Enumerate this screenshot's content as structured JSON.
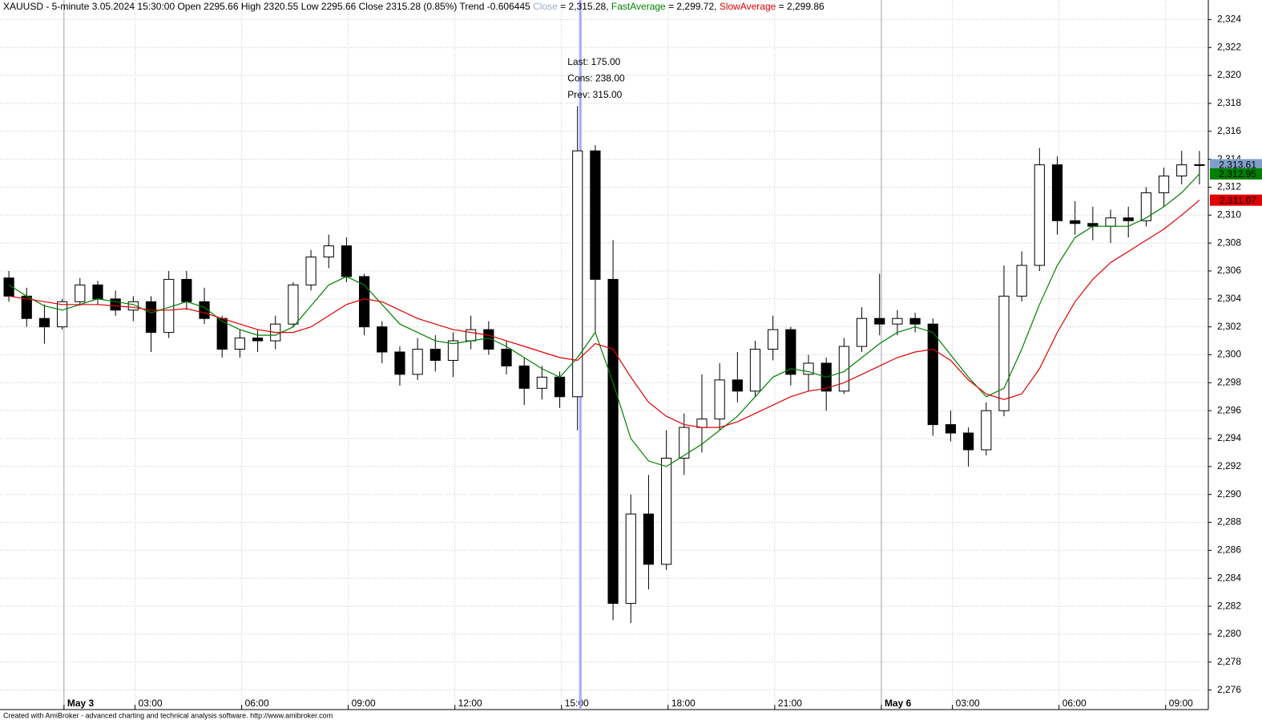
{
  "chart_data": {
    "type": "candlestick",
    "title": "XAUUSD - 5-minute 3.05.2024 15:30:00 Open 2295.66 High 2320.55 Low 2295.66 Close 2315.28 (0.85%) Trend -0.606445",
    "close_name": "Close",
    "close_color": "#9aaccc",
    "close_readout": "= 2,315.28,",
    "footer": "Created with AmiBroker - advanced charting and technical analysis software. http://www.amibroker.com",
    "xlim": [
      0,
      34
    ],
    "xticks": [
      {
        "value": 1.8,
        "label": "May 3",
        "day": true
      },
      {
        "value": 3.8,
        "label": "03:00"
      },
      {
        "value": 6.8,
        "label": "06:00"
      },
      {
        "value": 9.8,
        "label": "09:00"
      },
      {
        "value": 12.8,
        "label": "12:00"
      },
      {
        "value": 15.8,
        "label": "15:00"
      },
      {
        "value": 18.8,
        "label": "18:00"
      },
      {
        "value": 21.8,
        "label": "21:00"
      },
      {
        "value": 24.8,
        "label": "May 6",
        "day": true
      },
      {
        "value": 26.8,
        "label": "03:00"
      },
      {
        "value": 29.8,
        "label": "06:00"
      },
      {
        "value": 32.8,
        "label": "09:00"
      }
    ],
    "ylim": [
      2274.6,
      2325.4
    ],
    "yticks": [
      {
        "value": 2276,
        "label": "2,276"
      },
      {
        "value": 2278,
        "label": "2,278"
      },
      {
        "value": 2280,
        "label": "2,280"
      },
      {
        "value": 2282,
        "label": "2,282"
      },
      {
        "value": 2284,
        "label": "2,284"
      },
      {
        "value": 2286,
        "label": "2,286"
      },
      {
        "value": 2288,
        "label": "2,288"
      },
      {
        "value": 2290,
        "label": "2,290"
      },
      {
        "value": 2292,
        "label": "2,292"
      },
      {
        "value": 2294,
        "label": "2,294"
      },
      {
        "value": 2296,
        "label": "2,296"
      },
      {
        "value": 2298,
        "label": "2,298"
      },
      {
        "value": 2300,
        "label": "2,300"
      },
      {
        "value": 2302,
        "label": "2,302"
      },
      {
        "value": 2304,
        "label": "2,304"
      },
      {
        "value": 2306,
        "label": "2,306"
      },
      {
        "value": 2308,
        "label": "2,308"
      },
      {
        "value": 2310,
        "label": "2,310"
      },
      {
        "value": 2312,
        "label": "2,312"
      },
      {
        "value": 2314,
        "label": "2,314"
      },
      {
        "value": 2316,
        "label": "2,316"
      },
      {
        "value": 2318,
        "label": "2,318"
      },
      {
        "value": 2320,
        "label": "2,320"
      },
      {
        "value": 2322,
        "label": "2,322"
      },
      {
        "value": 2324,
        "label": "2,324"
      }
    ],
    "grid": true,
    "cursor_x": 16.33,
    "cursor_color": "#a8a8ff",
    "annotation_color": "#2a9a2a",
    "annotations": [
      "Last: 175.00",
      "Cons: 238.00",
      "Prev: 315.00"
    ],
    "x": [
      0.25,
      0.75,
      1.25,
      1.75,
      2.25,
      2.75,
      3.25,
      3.75,
      4.25,
      4.75,
      5.25,
      5.75,
      6.25,
      6.75,
      7.25,
      7.75,
      8.25,
      8.75,
      9.25,
      9.75,
      10.25,
      10.75,
      11.25,
      11.75,
      12.25,
      12.75,
      13.25,
      13.75,
      14.25,
      14.75,
      15.25,
      15.75,
      16.25,
      16.75,
      17.25,
      17.75,
      18.25,
      18.75,
      19.25,
      19.75,
      20.25,
      20.75,
      21.25,
      21.75,
      22.25,
      22.75,
      23.25,
      23.75,
      24.25,
      24.75,
      25.25,
      25.75,
      26.25,
      26.75,
      27.25,
      27.75,
      28.25,
      28.75,
      29.25,
      29.75,
      30.25,
      30.75,
      31.25,
      31.75,
      32.25,
      32.75,
      33.25,
      33.75
    ],
    "candles": [
      [
        2305.5,
        2306,
        2303.8,
        2304.2
      ],
      [
        2304.2,
        2304.8,
        2302,
        2302.6
      ],
      [
        2302.6,
        2303.6,
        2300.8,
        2302
      ],
      [
        2302,
        2304,
        2301.8,
        2303.8
      ],
      [
        2303.8,
        2305.5,
        2303.5,
        2305
      ],
      [
        2305,
        2305.3,
        2303.6,
        2304
      ],
      [
        2304,
        2304.6,
        2302.8,
        2303.2
      ],
      [
        2303.2,
        2304.2,
        2302.4,
        2303.8
      ],
      [
        2303.8,
        2304.2,
        2300.2,
        2301.6
      ],
      [
        2301.6,
        2306,
        2301.2,
        2305.4
      ],
      [
        2305.4,
        2306,
        2303.2,
        2303.8
      ],
      [
        2303.8,
        2304.8,
        2302.2,
        2302.6
      ],
      [
        2302.6,
        2302.8,
        2299.8,
        2300.4
      ],
      [
        2300.4,
        2301.8,
        2299.8,
        2301.2
      ],
      [
        2301.2,
        2301.8,
        2300.2,
        2301
      ],
      [
        2301,
        2302.8,
        2300.4,
        2302.2
      ],
      [
        2302.2,
        2305.2,
        2302,
        2305
      ],
      [
        2305,
        2307.5,
        2304.6,
        2307
      ],
      [
        2307,
        2308.6,
        2306.2,
        2307.8
      ],
      [
        2307.8,
        2308.4,
        2305.2,
        2305.6
      ],
      [
        2305.6,
        2305.8,
        2301.4,
        2302
      ],
      [
        2302,
        2302.4,
        2299.4,
        2300.2
      ],
      [
        2300.2,
        2300.6,
        2297.8,
        2298.6
      ],
      [
        2298.6,
        2301.2,
        2298.2,
        2300.4
      ],
      [
        2300.4,
        2301.4,
        2298.8,
        2299.6
      ],
      [
        2299.6,
        2301.6,
        2298.4,
        2301
      ],
      [
        2301,
        2302.8,
        2300.4,
        2301.8
      ],
      [
        2301.8,
        2302.4,
        2300,
        2300.4
      ],
      [
        2300.4,
        2301,
        2298.6,
        2299.2
      ],
      [
        2299.2,
        2299.8,
        2296.4,
        2297.6
      ],
      [
        2297.6,
        2299.2,
        2296.8,
        2298.4
      ],
      [
        2298.4,
        2298.8,
        2296.2,
        2297
      ],
      [
        2297,
        2317.8,
        2294.6,
        2314.6
      ],
      [
        2314.6,
        2315,
        2301.6,
        2305.4
      ],
      [
        2305.4,
        2308.2,
        2281,
        2282.2
      ],
      [
        2282.2,
        2290,
        2280.8,
        2288.6
      ],
      [
        2288.6,
        2291.4,
        2283.2,
        2285
      ],
      [
        2285,
        2294.6,
        2284.6,
        2292.6
      ],
      [
        2292.6,
        2295.8,
        2291.4,
        2294.8
      ],
      [
        2294.8,
        2298.6,
        2293,
        2295.4
      ],
      [
        2295.4,
        2299.4,
        2294.6,
        2298.2
      ],
      [
        2298.2,
        2300.2,
        2296.6,
        2297.4
      ],
      [
        2297.4,
        2301,
        2297,
        2300.4
      ],
      [
        2300.4,
        2302.8,
        2299.6,
        2301.8
      ],
      [
        2301.8,
        2302,
        2297.8,
        2298.6
      ],
      [
        2298.6,
        2300,
        2297.4,
        2299.4
      ],
      [
        2299.4,
        2299.8,
        2296,
        2297.4
      ],
      [
        2297.4,
        2301.2,
        2297.2,
        2300.6
      ],
      [
        2300.6,
        2303.4,
        2300.2,
        2302.6
      ],
      [
        2302.6,
        2305.8,
        2301.4,
        2302.2
      ],
      [
        2302.2,
        2303.2,
        2301.4,
        2302.6
      ],
      [
        2302.6,
        2303,
        2301.6,
        2302.2
      ],
      [
        2302.2,
        2302.6,
        2294.2,
        2295
      ],
      [
        2295,
        2296,
        2293.8,
        2294.4
      ],
      [
        2294.4,
        2294.8,
        2292,
        2293.2
      ],
      [
        2293.2,
        2296.6,
        2292.8,
        2296
      ],
      [
        2296,
        2306.4,
        2295.6,
        2304.2
      ],
      [
        2304.2,
        2307.4,
        2303.8,
        2306.4
      ],
      [
        2306.4,
        2314.8,
        2306,
        2313.6
      ],
      [
        2313.6,
        2314.2,
        2308.6,
        2309.6
      ],
      [
        2309.6,
        2311,
        2308.6,
        2309.4
      ],
      [
        2309.4,
        2310.6,
        2308.2,
        2309.2
      ],
      [
        2309.2,
        2310.4,
        2308,
        2309.8
      ],
      [
        2309.8,
        2310.6,
        2308.4,
        2309.6
      ],
      [
        2309.6,
        2312,
        2309.2,
        2311.6
      ],
      [
        2311.6,
        2313.4,
        2310.6,
        2312.8
      ],
      [
        2312.8,
        2314.6,
        2312.2,
        2313.6
      ],
      [
        2313.6,
        2314.6,
        2312.2,
        2313.61
      ]
    ],
    "series": [
      {
        "name": "FastAverage",
        "color": "#008000",
        "readout": "= 2,299.72,",
        "values": [
          2305,
          2304.2,
          2303.5,
          2303.2,
          2303.6,
          2304,
          2303.8,
          2303.6,
          2303,
          2303.4,
          2303.8,
          2303.4,
          2302.4,
          2301.8,
          2301.4,
          2301.4,
          2302,
          2303.5,
          2305,
          2305.6,
          2305,
          2303.6,
          2302.2,
          2301.6,
          2301,
          2300.8,
          2301,
          2301.2,
          2300.6,
          2299.8,
          2299,
          2298.4,
          2299.8,
          2301.6,
          2298,
          2294,
          2292.4,
          2292,
          2292.8,
          2293.6,
          2294.6,
          2295.6,
          2297,
          2298.4,
          2299,
          2298.8,
          2298.4,
          2298.8,
          2299.8,
          2300.8,
          2301.6,
          2302,
          2301.6,
          2300,
          2298.4,
          2297,
          2297.6,
          2300.4,
          2303.6,
          2306.4,
          2308.4,
          2309.2,
          2309.2,
          2309.2,
          2309.8,
          2310.6,
          2311.6,
          2312.95
        ]
      },
      {
        "name": "SlowAverage",
        "color": "#e00000",
        "readout": "= 2,299.86",
        "values": [
          2304.2,
          2304,
          2303.8,
          2303.6,
          2303.6,
          2303.6,
          2303.5,
          2303.4,
          2303.2,
          2303.2,
          2303.3,
          2303,
          2302.6,
          2302.2,
          2301.8,
          2301.6,
          2301.6,
          2302,
          2302.8,
          2303.6,
          2304,
          2303.8,
          2303.2,
          2302.6,
          2302.2,
          2301.8,
          2301.6,
          2301.4,
          2301,
          2300.6,
          2300.2,
          2299.8,
          2299.6,
          2300.8,
          2300.4,
          2298.4,
          2296.6,
          2295.6,
          2295,
          2294.8,
          2294.8,
          2295.2,
          2295.8,
          2296.4,
          2297,
          2297.4,
          2297.6,
          2298,
          2298.6,
          2299.2,
          2299.8,
          2300.2,
          2300.4,
          2299.6,
          2298.2,
          2297.2,
          2296.8,
          2297.2,
          2299,
          2301.6,
          2303.8,
          2305.4,
          2306.6,
          2307.4,
          2308.2,
          2309,
          2310,
          2311.07
        ]
      }
    ],
    "price_labels": [
      {
        "value": 2313.61,
        "label": "2,313.61",
        "color": "#7f9fc8"
      },
      {
        "value": 2312.95,
        "label": "2,312.95",
        "color": "#008000"
      },
      {
        "value": 2311.07,
        "label": "2,311.07",
        "color": "#e00000"
      }
    ]
  }
}
